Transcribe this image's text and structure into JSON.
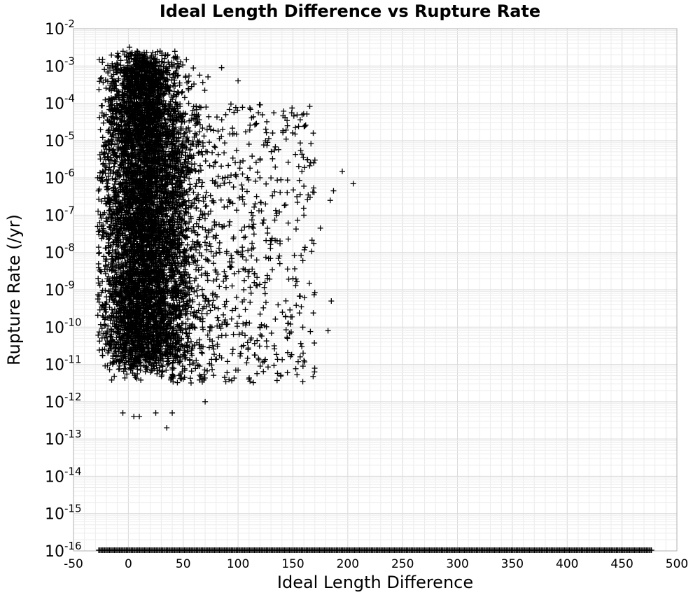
{
  "chart_data": {
    "type": "scatter",
    "title": "Ideal Length Difference vs Rupture Rate",
    "xlabel": "Ideal Length Difference",
    "ylabel": "Rupture Rate (/yr)",
    "xlim": [
      -50,
      500
    ],
    "ylim": [
      1e-16,
      0.01
    ],
    "y_scale": "log",
    "grid": true,
    "legend": "none",
    "marker": "plus",
    "marker_color": "#000000",
    "x_ticks": [
      "-50",
      "0",
      "50",
      "100",
      "150",
      "200",
      "250",
      "300",
      "350",
      "400",
      "450",
      "500"
    ],
    "y_ticks": [
      {
        "base": "10",
        "exp": "-16"
      },
      {
        "base": "10",
        "exp": "-15"
      },
      {
        "base": "10",
        "exp": "-14"
      },
      {
        "base": "10",
        "exp": "-13"
      },
      {
        "base": "10",
        "exp": "-12"
      },
      {
        "base": "10",
        "exp": "-11"
      },
      {
        "base": "10",
        "exp": "-10"
      },
      {
        "base": "10",
        "exp": "-9"
      },
      {
        "base": "10",
        "exp": "-8"
      },
      {
        "base": "10",
        "exp": "-7"
      },
      {
        "base": "10",
        "exp": "-6"
      },
      {
        "base": "10",
        "exp": "-5"
      },
      {
        "base": "10",
        "exp": "-4"
      },
      {
        "base": "10",
        "exp": "-3"
      },
      {
        "base": "10",
        "exp": "-2"
      }
    ],
    "points": [
      [
        1,
        0.0032
      ],
      [
        8,
        0.0025
      ],
      [
        15,
        0.002
      ],
      [
        36,
        0.002
      ],
      [
        85,
        0.0009
      ],
      [
        100,
        0.0004
      ],
      [
        -28,
        5e-08
      ],
      [
        -18,
        1e-05
      ],
      [
        -15,
        3e-06
      ],
      [
        -12,
        0.00015
      ],
      [
        145,
        2.5e-05
      ],
      [
        152,
        1.5e-05
      ],
      [
        170,
        3e-06
      ],
      [
        195,
        1.5e-06
      ],
      [
        205,
        7e-07
      ],
      [
        187,
        4.5e-07
      ],
      [
        184,
        2.5e-07
      ],
      [
        160,
        6e-07
      ],
      [
        175,
        4.5e-08
      ],
      [
        160,
        1e-07
      ],
      [
        150,
        2e-09
      ],
      [
        165,
        1.5e-09
      ],
      [
        185,
        5e-10
      ],
      [
        182,
        8e-11
      ],
      [
        145,
        5e-11
      ],
      [
        145,
        6e-12
      ],
      [
        120,
        1e-10
      ],
      [
        100,
        7e-12
      ],
      [
        90,
        6e-12
      ],
      [
        70,
        1e-12
      ],
      [
        40,
        5e-13
      ],
      [
        25,
        5e-13
      ],
      [
        10,
        4e-13
      ],
      [
        5,
        4e-13
      ],
      [
        -5,
        5e-13
      ],
      [
        35,
        2e-13
      ],
      [
        130,
        1e-06
      ],
      [
        120,
        3e-06
      ],
      [
        110,
        8e-06
      ],
      [
        95,
        1.5e-05
      ],
      [
        75,
        2e-05
      ],
      [
        60,
        4e-05
      ],
      [
        55,
        0.0001
      ],
      [
        45,
        0.0002
      ],
      [
        125,
        2e-07
      ],
      [
        110,
        5e-08
      ],
      [
        100,
        1e-08
      ],
      [
        80,
        3e-09
      ],
      [
        70,
        5e-10
      ],
      [
        60,
        1e-10
      ],
      [
        50,
        3e-11
      ]
    ],
    "zero_rate_points": {
      "y": 1e-16,
      "x_min": -27,
      "x_max": 477
    }
  }
}
